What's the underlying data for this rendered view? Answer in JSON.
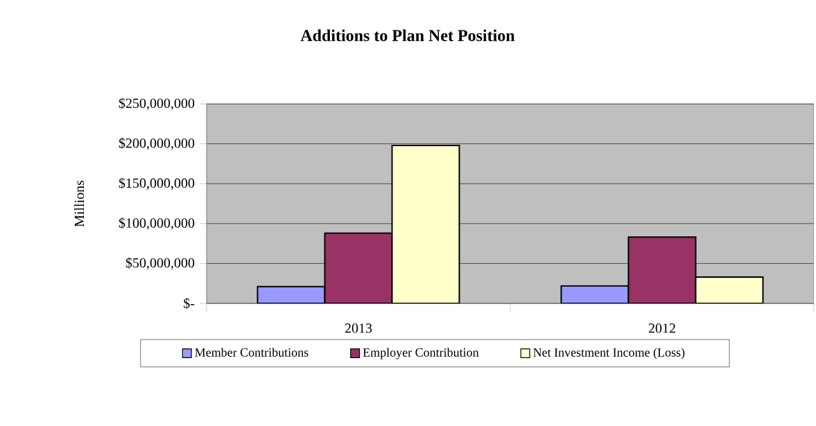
{
  "chart_data": {
    "type": "bar",
    "title": "Additions to Plan Net Position",
    "ylabel": "Millions",
    "categories": [
      "2013",
      "2012"
    ],
    "series": [
      {
        "name": "Member Contributions",
        "color": "#9999ff",
        "values": [
          21000000,
          22000000
        ]
      },
      {
        "name": "Employer Contribution",
        "color": "#993366",
        "values": [
          88000000,
          83000000
        ]
      },
      {
        "name": "Net Investment Income (Loss)",
        "color": "#ffffcc",
        "values": [
          198000000,
          33000000
        ]
      }
    ],
    "ylim": [
      0,
      250000000
    ],
    "yticks": [
      {
        "value": 0,
        "label": "$-"
      },
      {
        "value": 50000000,
        "label": "$50,000,000"
      },
      {
        "value": 100000000,
        "label": "$100,000,000"
      },
      {
        "value": 150000000,
        "label": "$150,000,000"
      },
      {
        "value": 200000000,
        "label": "$200,000,000"
      },
      {
        "value": 250000000,
        "label": "$250,000,000"
      }
    ],
    "grid": "y",
    "legend": "bottom"
  }
}
